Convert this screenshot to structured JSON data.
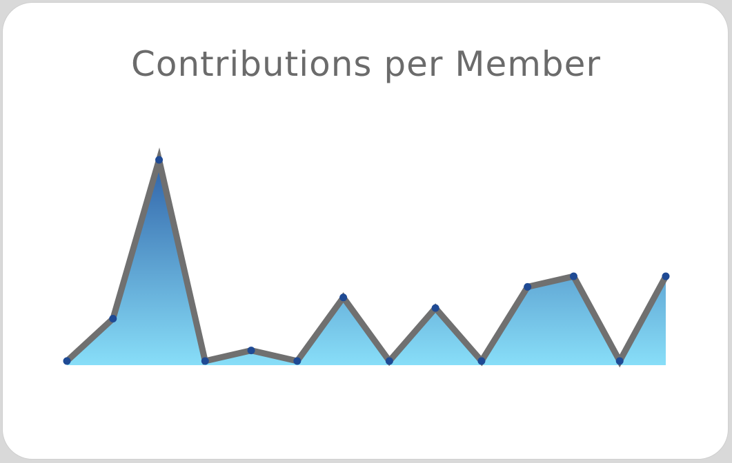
{
  "chart_data": {
    "type": "area",
    "title": "Contributions per Member",
    "values": [
      0,
      4,
      19,
      0,
      1,
      0,
      6,
      0,
      5,
      0,
      7,
      8,
      0,
      8
    ],
    "ylim": [
      0,
      20
    ],
    "grid": false,
    "colors": {
      "line": "#707070",
      "marker": "#1f4a94",
      "fill_top": "#2f62a8",
      "fill_bottom": "#88def8"
    }
  }
}
